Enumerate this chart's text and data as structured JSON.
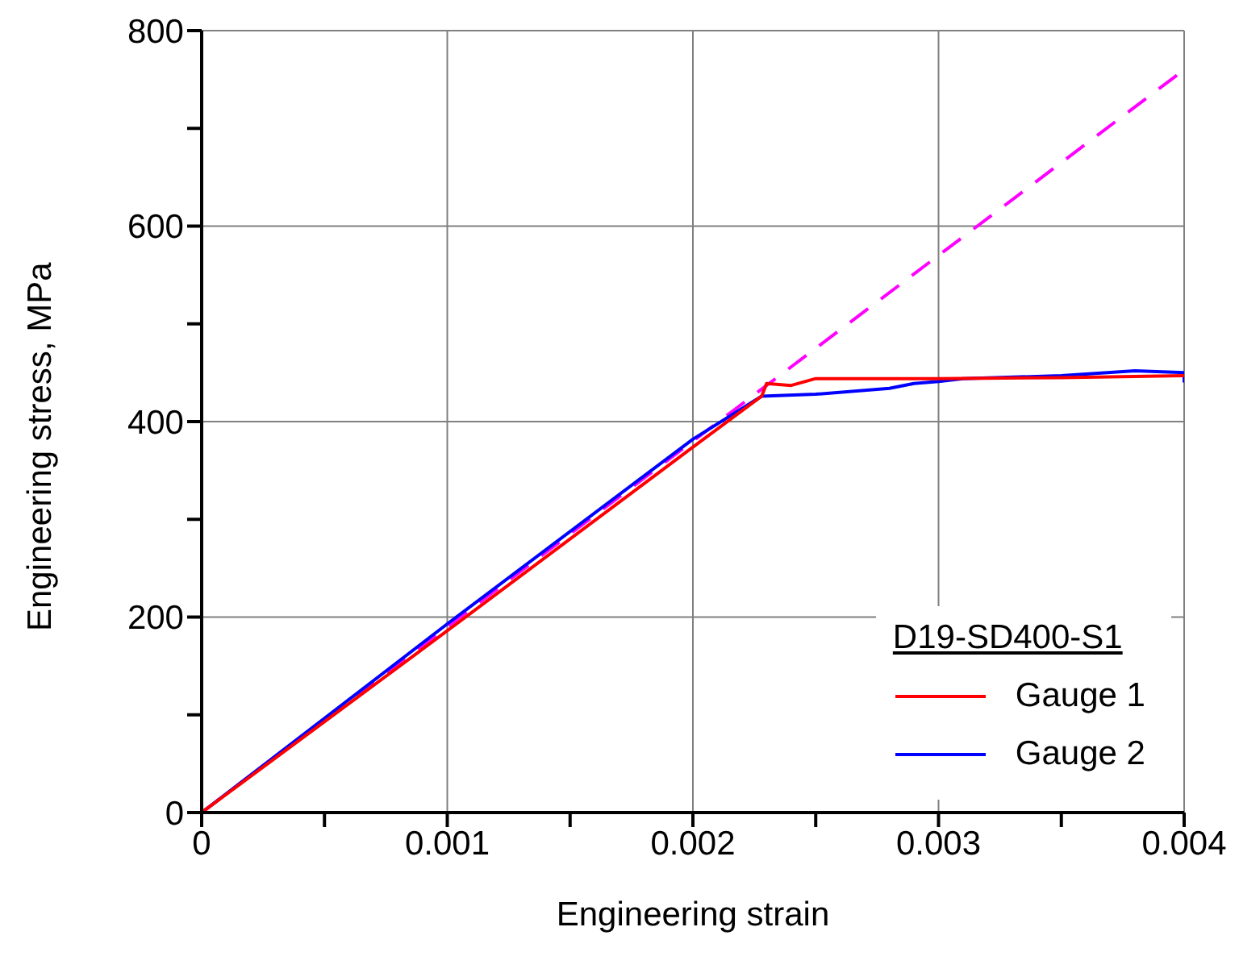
{
  "chart_data": {
    "type": "line",
    "xlabel": "Engineering strain",
    "ylabel": "Engineering stress, MPa",
    "legend_title": "D19-SD400-S1",
    "xlim": [
      0,
      0.004
    ],
    "xticks": [
      0,
      {
        "value": 0.0005,
        "label": null
      },
      0.001,
      {
        "value": 0.0015,
        "label": null
      },
      0.002,
      {
        "value": 0.0025,
        "label": null
      },
      0.003,
      {
        "value": 0.0035,
        "label": null
      },
      0.004
    ],
    "ylim": [
      0,
      800
    ],
    "yticks": [
      0,
      {
        "value": 100,
        "label": null
      },
      200,
      {
        "value": 300,
        "label": null
      },
      400,
      {
        "value": 500,
        "label": null
      },
      600,
      {
        "value": 700,
        "label": null
      },
      800
    ],
    "grid": true,
    "legend": "bottom right",
    "marker": "none",
    "series": [
      {
        "name": "Gauge 1",
        "color": "#ff0000",
        "x": [
          0,
          0.001,
          0.002,
          0.00228,
          0.0023,
          0.0024,
          0.0025,
          0.003,
          0.0035,
          0.004
        ],
        "values": [
          0,
          186,
          374,
          426,
          439,
          437,
          444,
          444,
          445,
          447
        ]
      },
      {
        "name": "Gauge 2",
        "color": "#0000ff",
        "x": [
          0,
          0.001,
          0.002,
          0.00228,
          0.0025,
          0.0028,
          0.0029,
          0.003,
          0.0031,
          0.0035,
          0.0038,
          0.004,
          0.004
        ],
        "values": [
          0,
          193,
          382,
          426,
          428,
          434,
          439,
          441,
          444,
          447,
          452,
          450,
          440
        ]
      },
      {
        "color": "#ff00ff",
        "line_style": "dashed",
        "x": [
          0,
          0.004
        ],
        "values": [
          0,
          760
        ]
      }
    ]
  }
}
